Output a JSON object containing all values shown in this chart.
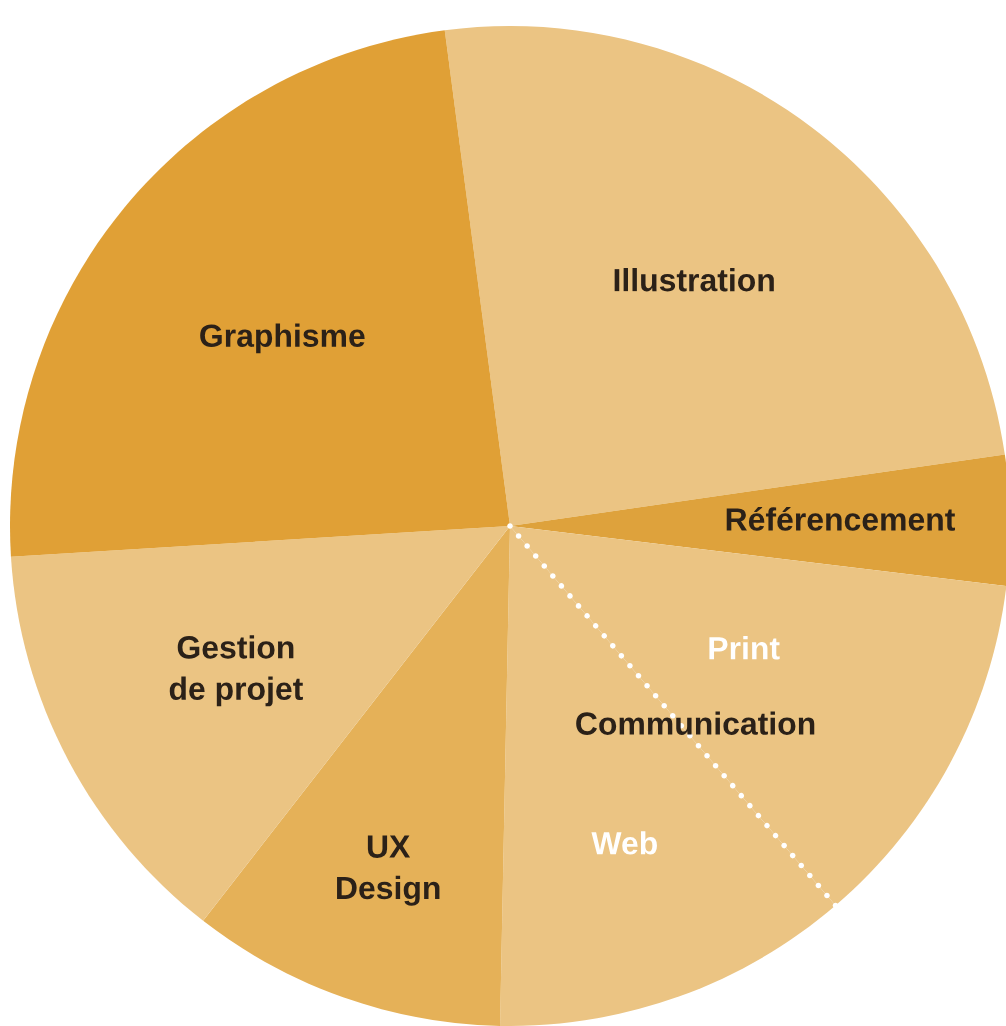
{
  "chart_data": {
    "type": "pie",
    "categories": [
      "Illustration",
      "Référencement",
      "Print",
      "Web",
      "UX\nDesign",
      "Gestion\nde projet",
      "Graphisme"
    ],
    "values": [
      24.8,
      4.2,
      11.8,
      11.6,
      10.2,
      13.5,
      23.9
    ],
    "colors": [
      "#ebc483",
      "#dea23c",
      "#ebc483",
      "#ebc483",
      "#e5b158",
      "#ebc483",
      "#e0a036"
    ],
    "annotations": [
      "Communication"
    ]
  }
}
